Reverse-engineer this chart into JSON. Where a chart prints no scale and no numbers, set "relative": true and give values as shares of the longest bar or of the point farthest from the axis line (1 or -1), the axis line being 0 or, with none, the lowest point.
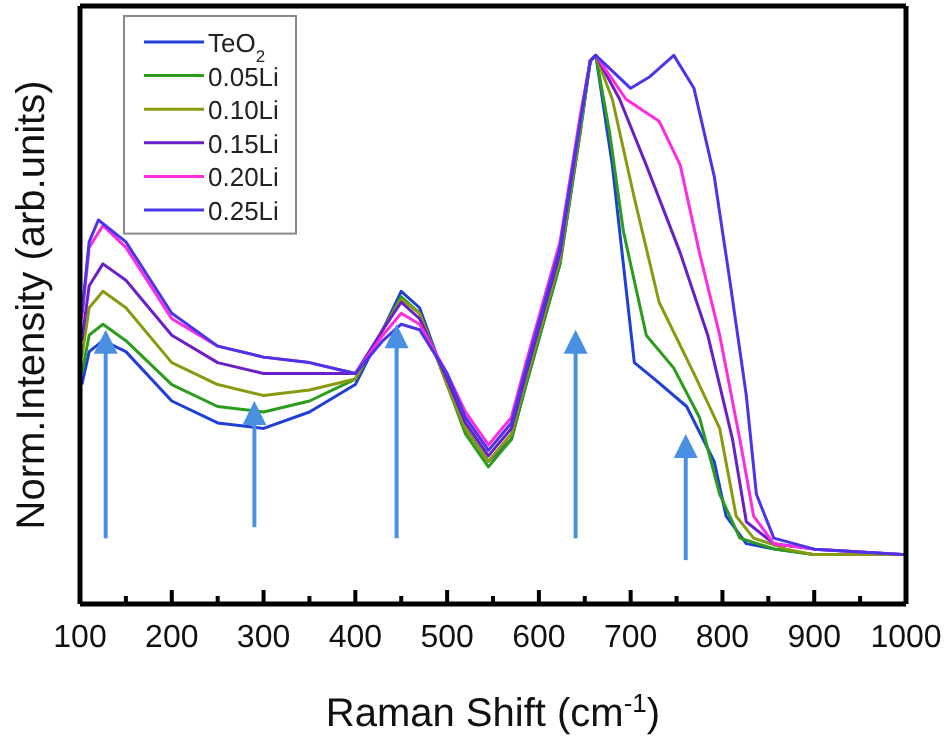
{
  "chart_data": {
    "type": "line",
    "relative": true,
    "xlabel": "Raman Shift (cm$^{-1}$)",
    "ylabel": "Norm.Intensity (arb.units)",
    "xlim": [
      100,
      1000
    ],
    "xticks": [
      100,
      {
        "value": 150,
        "label": null
      },
      200,
      {
        "value": 250,
        "label": null
      },
      300,
      {
        "value": 350,
        "label": null
      },
      400,
      {
        "value": 450,
        "label": null
      },
      500,
      {
        "value": 550,
        "label": null
      },
      600,
      {
        "value": 650,
        "label": null
      },
      700,
      {
        "value": 750,
        "label": null
      },
      800,
      {
        "value": 850,
        "label": null
      },
      900,
      {
        "value": 950,
        "label": null
      },
      1000
    ],
    "tick_labels": "x",
    "legend": "top left",
    "grid": false,
    "series": [
      {
        "name": "TeO$_{2}$",
        "color": "#1f3fd6",
        "x": [
          102,
          110,
          125,
          150,
          200,
          250,
          300,
          350,
          400,
          430,
          450,
          470,
          500,
          520,
          545,
          570,
          586,
          623,
          645,
          656,
          662,
          680,
          704,
          726,
          761,
          791,
          804,
          826,
          857,
          900,
          1000
        ],
        "values": [
          0.4,
          0.46,
          0.48,
          0.46,
          0.37,
          0.33,
          0.32,
          0.35,
          0.4,
          0.5,
          0.57,
          0.54,
          0.4,
          0.32,
          0.26,
          0.3,
          0.4,
          0.62,
          0.86,
          0.99,
          1.0,
          0.8,
          0.44,
          0.41,
          0.36,
          0.26,
          0.16,
          0.11,
          0.1,
          0.09,
          0.09
        ]
      },
      {
        "name": "0.05Li",
        "color": "#2a9d1a",
        "x": [
          102,
          110,
          125,
          150,
          200,
          250,
          300,
          350,
          400,
          430,
          450,
          470,
          500,
          520,
          545,
          570,
          586,
          623,
          645,
          656,
          662,
          677,
          692,
          717,
          747,
          775,
          797,
          819,
          857,
          900,
          1000
        ],
        "values": [
          0.42,
          0.49,
          0.51,
          0.48,
          0.4,
          0.36,
          0.35,
          0.37,
          0.41,
          0.5,
          0.56,
          0.53,
          0.4,
          0.31,
          0.25,
          0.3,
          0.4,
          0.62,
          0.86,
          0.99,
          1.0,
          0.86,
          0.68,
          0.49,
          0.43,
          0.34,
          0.2,
          0.12,
          0.1,
          0.09,
          0.09
        ]
      },
      {
        "name": "0.10Li",
        "color": "#8a9a10",
        "x": [
          102,
          110,
          125,
          150,
          200,
          250,
          300,
          350,
          400,
          430,
          450,
          470,
          500,
          520,
          545,
          570,
          586,
          623,
          645,
          656,
          662,
          680,
          704,
          731,
          769,
          797,
          815,
          834,
          870,
          900,
          1000
        ],
        "values": [
          0.45,
          0.54,
          0.57,
          0.54,
          0.44,
          0.4,
          0.38,
          0.39,
          0.41,
          0.5,
          0.555,
          0.53,
          0.4,
          0.32,
          0.26,
          0.31,
          0.41,
          0.63,
          0.87,
          0.99,
          1.0,
          0.92,
          0.74,
          0.55,
          0.42,
          0.32,
          0.16,
          0.12,
          0.1,
          0.09,
          0.09
        ]
      },
      {
        "name": "0.15Li",
        "color": "#6a1fc8",
        "x": [
          102,
          110,
          125,
          150,
          200,
          250,
          300,
          350,
          400,
          430,
          450,
          470,
          500,
          520,
          545,
          570,
          586,
          623,
          645,
          656,
          662,
          688,
          717,
          754,
          784,
          811,
          826,
          856,
          900,
          1000
        ],
        "values": [
          0.48,
          0.58,
          0.62,
          0.59,
          0.49,
          0.44,
          0.42,
          0.42,
          0.42,
          0.5,
          0.55,
          0.52,
          0.41,
          0.33,
          0.27,
          0.32,
          0.42,
          0.64,
          0.88,
          0.99,
          1.0,
          0.92,
          0.8,
          0.64,
          0.49,
          0.3,
          0.15,
          0.11,
          0.1,
          0.09
        ]
      },
      {
        "name": "0.20Li",
        "color": "#ff2be0",
        "x": [
          102,
          110,
          125,
          150,
          200,
          250,
          300,
          350,
          400,
          430,
          450,
          470,
          500,
          520,
          545,
          570,
          586,
          623,
          645,
          656,
          662,
          695,
          731,
          754,
          775,
          797,
          819,
          834,
          856,
          900,
          1000
        ],
        "values": [
          0.52,
          0.65,
          0.69,
          0.65,
          0.52,
          0.47,
          0.45,
          0.44,
          0.42,
          0.49,
          0.53,
          0.51,
          0.42,
          0.35,
          0.29,
          0.34,
          0.44,
          0.66,
          0.89,
          0.99,
          1.0,
          0.92,
          0.88,
          0.8,
          0.64,
          0.49,
          0.3,
          0.16,
          0.11,
          0.1,
          0.09
        ]
      },
      {
        "name": "0.25Li",
        "color": "#4a35e8",
        "x": [
          102,
          110,
          120,
          150,
          200,
          250,
          300,
          350,
          400,
          430,
          450,
          470,
          500,
          520,
          545,
          570,
          586,
          623,
          645,
          656,
          662,
          700,
          720,
          747,
          769,
          791,
          808,
          826,
          837,
          856,
          900,
          1000
        ],
        "values": [
          0.53,
          0.66,
          0.7,
          0.66,
          0.53,
          0.47,
          0.45,
          0.44,
          0.42,
          0.48,
          0.51,
          0.5,
          0.42,
          0.34,
          0.28,
          0.33,
          0.43,
          0.65,
          0.88,
          0.99,
          1.0,
          0.94,
          0.96,
          1.0,
          0.94,
          0.78,
          0.59,
          0.38,
          0.2,
          0.12,
          0.1,
          0.09
        ]
      }
    ]
  }
}
